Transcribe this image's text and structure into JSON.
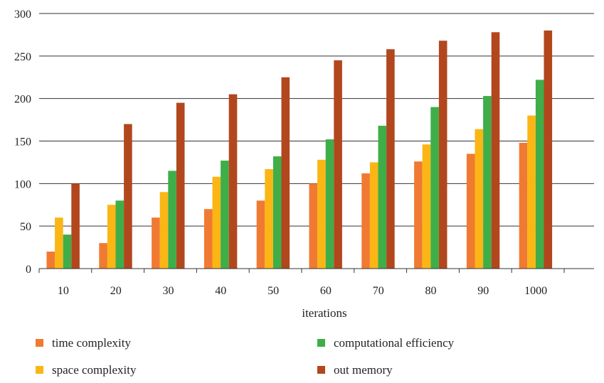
{
  "chart_data": {
    "type": "bar",
    "categories": [
      "10",
      "20",
      "30",
      "40",
      "50",
      "60",
      "70",
      "80",
      "90",
      "1000"
    ],
    "series": [
      {
        "name": "time complexity",
        "color": "#f07a32",
        "values": [
          20,
          30,
          60,
          70,
          80,
          100,
          112,
          126,
          135,
          148
        ]
      },
      {
        "name": "space complexity",
        "color": "#fbb615",
        "values": [
          60,
          75,
          90,
          108,
          117,
          128,
          125,
          146,
          164,
          180
        ]
      },
      {
        "name": "computational efficiency",
        "color": "#3fae49",
        "values": [
          40,
          80,
          115,
          127,
          132,
          152,
          168,
          190,
          203,
          222
        ]
      },
      {
        "name": "out memory",
        "color": "#b2471d",
        "values": [
          100,
          170,
          195,
          205,
          225,
          245,
          258,
          268,
          278,
          280
        ]
      }
    ],
    "xlabel": "iterations",
    "ylabel": "",
    "ylim": [
      0,
      300
    ],
    "yticks": [
      0,
      50,
      100,
      150,
      200,
      250,
      300
    ],
    "grid": true,
    "legend_position": "bottom"
  }
}
